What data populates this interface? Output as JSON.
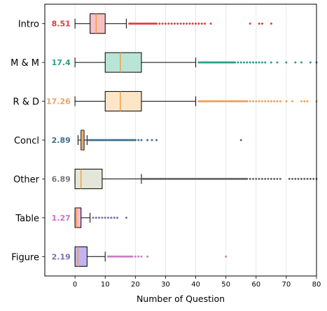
{
  "chart_data": {
    "type": "boxplot",
    "orientation": "horizontal",
    "xlabel": "Number of Question",
    "xlim": [
      -10,
      80
    ],
    "xticks": [
      0,
      10,
      20,
      30,
      40,
      50,
      60,
      70,
      80
    ],
    "grid": "x",
    "categories": [
      {
        "name": "Intro",
        "label": "8.51",
        "color": "#f7c1c3",
        "label_color": "#e03a3e",
        "outlier_color": "#e03a3e",
        "whisker_low": 0,
        "q1": 5,
        "median": 7,
        "q3": 10,
        "whisker_high": 17,
        "outliers": [
          18,
          18.5,
          19,
          19.5,
          20,
          20.5,
          21,
          21.5,
          22,
          22.5,
          23,
          23.5,
          24,
          24.5,
          25,
          25.5,
          26,
          26.5,
          27,
          28,
          29,
          30,
          31,
          32,
          33,
          34,
          35,
          36,
          37,
          38,
          39,
          40,
          41,
          42,
          43,
          45,
          58,
          61,
          62,
          65
        ]
      },
      {
        "name": "M & M",
        "label": "17.4",
        "color": "#b9e5d7",
        "label_color": "#2a9d8a",
        "outlier_color": "#2a9d8a",
        "whisker_low": 0,
        "q1": 10,
        "median": 15,
        "q3": 22,
        "whisker_high": 40,
        "outliers": [
          41,
          41.5,
          42,
          42.5,
          43,
          43.5,
          44,
          44.5,
          45,
          45.5,
          46,
          46.5,
          47,
          47.5,
          48,
          48.5,
          49,
          49.5,
          50,
          50.5,
          51,
          51.5,
          52,
          52.5,
          53,
          54,
          55,
          56,
          57,
          58,
          59,
          60,
          61,
          62,
          63,
          65,
          67,
          70,
          73,
          75,
          78,
          80
        ]
      },
      {
        "name": "R & D",
        "label": "17.26",
        "color": "#fde5c8",
        "label_color": "#f0a05a",
        "outlier_color": "#f0a05a",
        "whisker_low": 0,
        "q1": 10,
        "median": 15,
        "q3": 22,
        "whisker_high": 40,
        "outliers": [
          41,
          41.5,
          42,
          42.5,
          43,
          43.5,
          44,
          44.5,
          45,
          45.5,
          46,
          46.5,
          47,
          47.5,
          48,
          48.5,
          49,
          49.5,
          50,
          50.5,
          51,
          51.5,
          52,
          52.5,
          53,
          53.5,
          54,
          54.5,
          55,
          55.5,
          56,
          56.5,
          57,
          58,
          59,
          60,
          61,
          62,
          63,
          64,
          65,
          66,
          67,
          68,
          70,
          72,
          75,
          76,
          77,
          80
        ]
      },
      {
        "name": "Concl",
        "label": "2.89",
        "color": "#dde0c9",
        "label_color": "#3f6e8c",
        "outlier_color": "#3f6e8c",
        "whisker_low": 1,
        "q1": 2,
        "median": 2.5,
        "q3": 3,
        "whisker_high": 4,
        "outliers": [
          4.5,
          5,
          5.5,
          6,
          6.5,
          7,
          7.5,
          8,
          8.5,
          9,
          9.5,
          10,
          10.5,
          11,
          11.5,
          12,
          12.5,
          13,
          13.5,
          14,
          14.5,
          15,
          15.5,
          16,
          16.5,
          17,
          17.5,
          18,
          18.5,
          19,
          19.5,
          20,
          21,
          22,
          24,
          25.5,
          27,
          55
        ]
      },
      {
        "name": "Other",
        "label": "6.89",
        "color": "#e4e6d7",
        "label_color": "#777777",
        "outlier_color": "#666666",
        "whisker_low": 0,
        "q1": 0,
        "median": 2,
        "q3": 9,
        "whisker_high": 22,
        "outliers": [
          22.5,
          23,
          23.5,
          24,
          24.5,
          25,
          25.5,
          26,
          26.5,
          27,
          27.5,
          28,
          28.5,
          29,
          29.5,
          30,
          30.5,
          31,
          31.5,
          32,
          32.5,
          33,
          33.5,
          34,
          34.5,
          35,
          35.5,
          36,
          36.5,
          37,
          37.5,
          38,
          38.5,
          39,
          39.5,
          40,
          40.5,
          41,
          41.5,
          42,
          42.5,
          43,
          43.5,
          44,
          44.5,
          45,
          45.5,
          46,
          46.5,
          47,
          47.5,
          48,
          48.5,
          49,
          49.5,
          50,
          50.5,
          51,
          51.5,
          52,
          52.5,
          53,
          53.5,
          54,
          54.5,
          55,
          55.5,
          56,
          56.5,
          57,
          58,
          59,
          60,
          61,
          62,
          63,
          64,
          65,
          66,
          67,
          68,
          71,
          72,
          73,
          74,
          75,
          76,
          77,
          78,
          79,
          80
        ]
      },
      {
        "name": "Table",
        "label": "1.27",
        "color": "#f5b8e0",
        "label_color": "#d070c8",
        "outlier_color": "#7a6bb0",
        "whisker_low": 0,
        "q1": 0,
        "median": 0.5,
        "q3": 2,
        "whisker_high": 5,
        "outliers": [
          6,
          7,
          8,
          9,
          10,
          11,
          12,
          13,
          14,
          17
        ]
      },
      {
        "name": "Figure",
        "label": "2.19",
        "color": "#c2b3f5",
        "label_color": "#7a6bb0",
        "outlier_color": "#c77dc8",
        "whisker_low": 0,
        "q1": 0,
        "median": 1,
        "q3": 4,
        "whisker_high": 10,
        "outliers": [
          11,
          11.5,
          12,
          12.5,
          13,
          13.5,
          14,
          14.5,
          15,
          15.5,
          16,
          16.5,
          17,
          17.5,
          18,
          18.5,
          19,
          20,
          21,
          22,
          24,
          50
        ]
      }
    ],
    "median_color": "#f39c3a"
  }
}
